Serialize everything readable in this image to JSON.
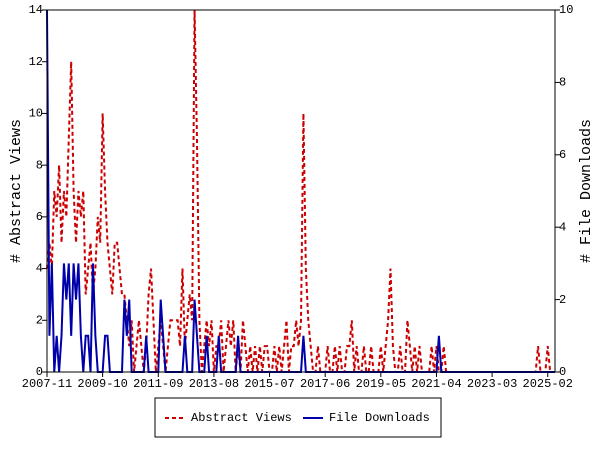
{
  "chart_data": {
    "type": "line",
    "x": [
      "2007-11",
      "2007-12",
      "2008-01",
      "2008-02",
      "2008-03",
      "2008-04",
      "2008-05",
      "2008-06",
      "2008-07",
      "2008-08",
      "2008-09",
      "2008-10",
      "2008-11",
      "2008-12",
      "2009-01",
      "2009-02",
      "2009-03",
      "2009-04",
      "2009-05",
      "2009-06",
      "2009-07",
      "2009-08",
      "2009-09",
      "2009-10",
      "2009-11",
      "2009-12",
      "2010-01",
      "2010-02",
      "2010-03",
      "2010-04",
      "2010-05",
      "2010-06",
      "2010-07",
      "2010-08",
      "2010-09",
      "2010-10",
      "2010-11",
      "2010-12",
      "2011-01",
      "2011-02",
      "2011-03",
      "2011-04",
      "2011-05",
      "2011-06",
      "2011-07",
      "2011-08",
      "2011-09",
      "2011-10",
      "2011-11",
      "2011-12",
      "2012-01",
      "2012-02",
      "2012-03",
      "2012-04",
      "2012-05",
      "2012-06",
      "2012-07",
      "2012-08",
      "2012-09",
      "2012-10",
      "2012-11",
      "2012-12",
      "2013-01",
      "2013-02",
      "2013-03",
      "2013-04",
      "2013-05",
      "2013-06",
      "2013-07",
      "2013-08",
      "2013-09",
      "2013-10",
      "2013-11",
      "2013-12",
      "2014-01",
      "2014-02",
      "2014-03",
      "2014-04",
      "2014-05",
      "2014-06",
      "2014-07",
      "2014-08",
      "2014-09",
      "2014-10",
      "2014-11",
      "2014-12",
      "2015-01",
      "2015-02",
      "2015-03",
      "2015-04",
      "2015-05",
      "2015-06",
      "2015-07",
      "2015-08",
      "2015-09",
      "2015-10",
      "2015-11",
      "2015-12",
      "2016-01",
      "2016-02",
      "2016-03",
      "2016-04",
      "2016-05",
      "2016-06",
      "2016-07",
      "2016-08",
      "2016-09",
      "2016-10",
      "2016-11",
      "2016-12",
      "2017-01",
      "2017-02",
      "2017-03",
      "2017-04",
      "2017-05",
      "2017-06",
      "2017-07",
      "2017-08",
      "2017-09",
      "2017-10",
      "2017-11",
      "2017-12",
      "2018-01",
      "2018-02",
      "2018-03",
      "2018-04",
      "2018-05",
      "2018-06",
      "2018-07",
      "2018-08",
      "2018-09",
      "2018-10",
      "2018-11",
      "2018-12",
      "2019-01",
      "2019-02",
      "2019-03",
      "2019-04",
      "2019-05",
      "2019-06",
      "2019-07",
      "2019-08",
      "2019-09",
      "2019-10",
      "2019-11",
      "2019-12",
      "2020-01",
      "2020-02",
      "2020-03",
      "2020-04",
      "2020-05",
      "2020-06",
      "2020-07",
      "2020-08",
      "2020-09",
      "2020-10",
      "2020-11",
      "2020-12",
      "2021-01",
      "2021-02",
      "2021-03",
      "2021-04",
      "2021-05",
      "2021-06",
      "2021-07",
      "2021-08",
      "2021-09",
      "2021-10",
      "2021-11",
      "2021-12",
      "2022-01",
      "2022-02",
      "2022-03",
      "2022-04",
      "2022-05",
      "2022-06",
      "2022-07",
      "2022-08",
      "2022-09",
      "2022-10",
      "2022-11",
      "2022-12",
      "2023-01",
      "2023-02",
      "2023-03",
      "2023-04",
      "2023-05",
      "2023-06",
      "2023-07",
      "2023-08",
      "2023-09",
      "2023-10",
      "2023-11",
      "2023-12",
      "2024-01",
      "2024-02",
      "2024-03",
      "2024-04",
      "2024-05",
      "2024-06",
      "2024-07",
      "2024-08",
      "2024-09",
      "2024-10",
      "2024-11",
      "2024-12",
      "2025-01",
      "2025-02",
      "2025-03",
      "2025-04",
      "2025-05"
    ],
    "series": [
      {
        "name": "Abstract Views",
        "color": "#cc0000",
        "dash": true,
        "axis": "y",
        "values": [
          4,
          5,
          4,
          7,
          6,
          8,
          5,
          7,
          6,
          9,
          12,
          7,
          5,
          7,
          6,
          7,
          3,
          4,
          5,
          3,
          4,
          6,
          5,
          10,
          7,
          5,
          4,
          3,
          5,
          5,
          4,
          3,
          3,
          2,
          1,
          2,
          0,
          1,
          2,
          1,
          0,
          1,
          3,
          4,
          2,
          0,
          1,
          2,
          1,
          0,
          1,
          2,
          2,
          2,
          2,
          1,
          4,
          1,
          2,
          3,
          2,
          14,
          9,
          2,
          0,
          1,
          2,
          1,
          2,
          0,
          1,
          1,
          2,
          0,
          1,
          2,
          1,
          2,
          0,
          1,
          0,
          2,
          1,
          0,
          1,
          0,
          1,
          0,
          1,
          0,
          1,
          1,
          0,
          0,
          1,
          0,
          1,
          0,
          1,
          2,
          0,
          1,
          1,
          2,
          1,
          2,
          10,
          4,
          2,
          1,
          0,
          0,
          1,
          0,
          0,
          0,
          1,
          0,
          0,
          1,
          0,
          1,
          0,
          0,
          1,
          1,
          2,
          0,
          1,
          0,
          0,
          1,
          0,
          0,
          1,
          0,
          0,
          0,
          1,
          0,
          1,
          2,
          4,
          1,
          0,
          0,
          1,
          0,
          0,
          2,
          1,
          0,
          1,
          0,
          1,
          0,
          0,
          0,
          0,
          1,
          0,
          1,
          0,
          0,
          1,
          0,
          0,
          0,
          0,
          0,
          0,
          0,
          0,
          0,
          0,
          0,
          0,
          0,
          0,
          0,
          0,
          0,
          0,
          0,
          0,
          0,
          0,
          0,
          0,
          0,
          0,
          0,
          0,
          0,
          0,
          0,
          0,
          0,
          0,
          0,
          0,
          0,
          0,
          1,
          0,
          0,
          0,
          1,
          0,
          0,
          0
        ]
      },
      {
        "name": "File Downloads",
        "color": "#0000aa",
        "dash": false,
        "axis": "y2",
        "values": [
          10,
          1,
          3,
          0,
          1,
          0,
          1,
          3,
          2,
          3,
          1,
          3,
          2,
          3,
          1,
          0,
          1,
          1,
          0,
          3,
          1,
          0,
          0,
          0,
          1,
          1,
          0,
          0,
          0,
          0,
          0,
          0,
          2,
          1,
          2,
          0,
          0,
          0,
          0,
          0,
          0,
          1,
          0,
          0,
          0,
          0,
          0,
          2,
          1,
          0,
          0,
          0,
          0,
          0,
          0,
          0,
          0,
          1,
          0,
          0,
          0,
          2,
          1,
          0,
          0,
          0,
          1,
          0,
          0,
          0,
          0,
          1,
          0,
          0,
          0,
          0,
          0,
          0,
          0,
          1,
          0,
          0,
          0,
          0,
          0,
          0,
          0,
          0,
          0,
          0,
          0,
          0,
          0,
          0,
          0,
          0,
          0,
          0,
          0,
          0,
          0,
          0,
          0,
          0,
          0,
          0,
          1,
          0,
          0,
          0,
          0,
          0,
          0,
          0,
          0,
          0,
          0,
          0,
          0,
          0,
          0,
          0,
          0,
          0,
          0,
          0,
          0,
          0,
          0,
          0,
          0,
          0,
          0,
          0,
          0,
          0,
          0,
          0,
          0,
          0,
          0,
          0,
          0,
          0,
          0,
          0,
          0,
          0,
          0,
          0,
          0,
          0,
          0,
          0,
          0,
          0,
          0,
          0,
          0,
          0,
          0,
          0,
          1,
          0,
          0,
          0,
          0,
          0,
          0,
          0,
          0,
          0,
          0,
          0,
          0,
          0,
          0,
          0,
          0,
          0,
          0,
          0,
          0,
          0,
          0,
          0,
          0,
          0,
          0,
          0,
          0,
          0,
          0,
          0,
          0,
          0,
          0,
          0,
          0,
          0,
          0,
          0,
          0,
          0,
          0,
          0,
          0,
          0,
          0,
          0,
          0
        ]
      }
    ],
    "xlim": [
      "2007-11",
      "2025-05"
    ],
    "xticks": [
      "2007-11",
      "2009-10",
      "2011-09",
      "2013-08",
      "2015-07",
      "2017-06",
      "2019-05",
      "2021-04",
      "2023-03",
      "2025-02"
    ],
    "ylabel": "# Abstract Views",
    "ylim": [
      0,
      14
    ],
    "yticks": [
      0,
      2,
      4,
      6,
      8,
      10,
      12,
      14
    ],
    "y2label": "# File Downloads",
    "y2lim": [
      0,
      10
    ],
    "y2ticks": [
      0,
      2,
      4,
      6,
      8,
      10
    ],
    "legend": "bottom"
  }
}
